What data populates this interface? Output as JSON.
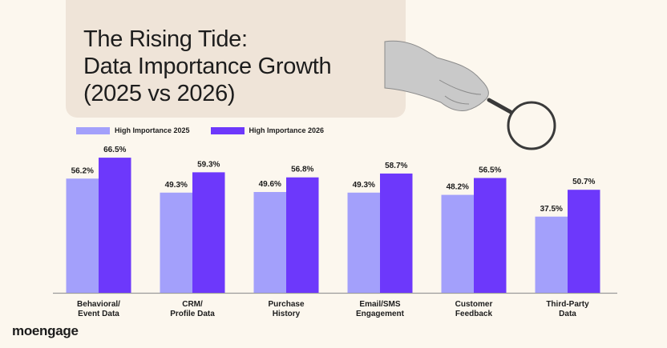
{
  "title": {
    "line1": "The Rising Tide:",
    "line2": "Data Importance Growth",
    "line3": "(2025 vs 2026)"
  },
  "logo": "moengage",
  "colors": {
    "background": "#fcf7ee",
    "panel": "#efe4d8",
    "series2025": "#a3a0fb",
    "series2026": "#6d38fb"
  },
  "illustration": "hand-holding-magnifying-glass",
  "chart_data": {
    "type": "bar",
    "title": "The Rising Tide: Data Importance Growth (2025 vs 2026)",
    "categories": [
      [
        "Behavioral/",
        "Event Data"
      ],
      [
        "CRM/",
        "Profile Data"
      ],
      [
        "Purchase",
        "History"
      ],
      [
        "Email/SMS",
        "Engagement"
      ],
      [
        "Customer",
        "Feedback"
      ],
      [
        "Third-Party",
        "Data"
      ]
    ],
    "series": [
      {
        "name": "High Importance 2025",
        "values": [
          56.2,
          49.3,
          49.6,
          49.3,
          48.2,
          37.5
        ],
        "labels": [
          "56.2%",
          "49.3%",
          "49.6%",
          "49.3%",
          "48.2%",
          "37.5%"
        ]
      },
      {
        "name": "High Importance 2026",
        "values": [
          66.5,
          59.3,
          56.8,
          58.7,
          56.5,
          50.7
        ],
        "labels": [
          "66.5%",
          "59.3%",
          "56.8%",
          "58.7%",
          "56.5%",
          "50.7%"
        ]
      }
    ],
    "ylim": [
      0,
      70
    ],
    "grid": false,
    "legend": "top-left",
    "data_labels": true
  }
}
